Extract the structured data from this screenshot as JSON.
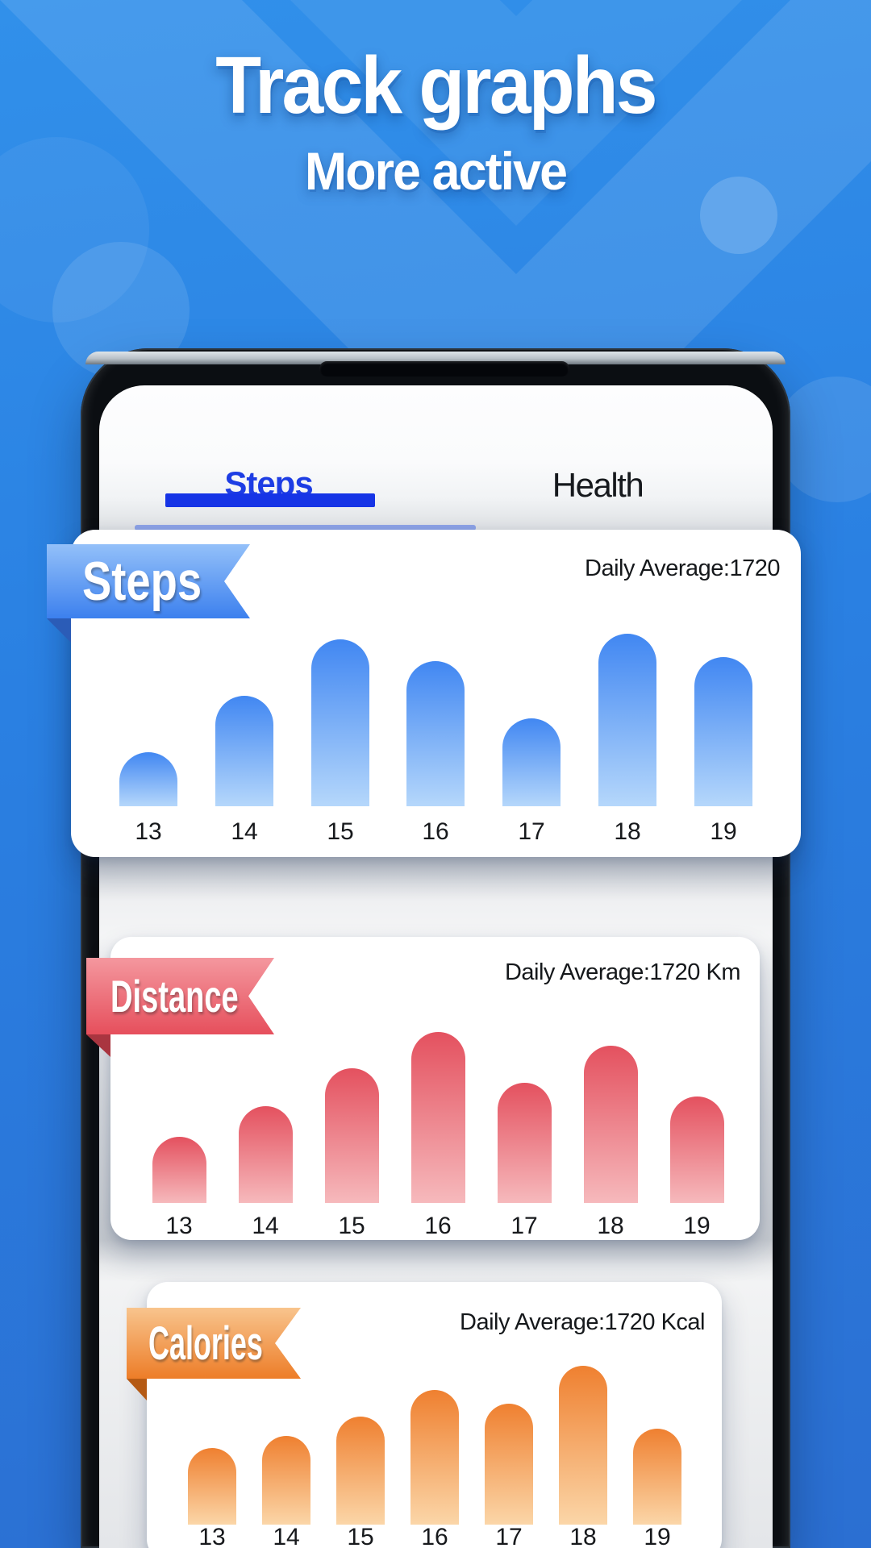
{
  "hero": {
    "title": "Track graphs",
    "subtitle": "More active"
  },
  "phone": {
    "tabs": [
      {
        "label": "Steps",
        "active": true
      },
      {
        "label": "Health",
        "active": false
      }
    ],
    "active_tab_underline_color": "#1634e6"
  },
  "cards": [
    {
      "id": "steps",
      "ribbon_label": "Steps",
      "daily_average": "Daily Average:1720",
      "colors": {
        "ribbon_from": "#93c0f9",
        "ribbon_to": "#3c80ee",
        "fold": "#2b5cb7",
        "bar_from": "#4187f2",
        "bar_to": "#b5d7fb"
      }
    },
    {
      "id": "distance",
      "ribbon_label": "Distance",
      "daily_average": "Daily Average:1720 Km",
      "colors": {
        "ribbon_from": "#f4979e",
        "ribbon_to": "#e64f5c",
        "fold": "#a93540",
        "bar_from": "#e4515f",
        "bar_to": "#f6b9bc"
      }
    },
    {
      "id": "calories",
      "ribbon_label": "Calories",
      "daily_average": "Daily Average:1720 Kcal",
      "colors": {
        "ribbon_from": "#f8c48d",
        "ribbon_to": "#ed7d28",
        "fold": "#b55a14",
        "bar_from": "#ef8030",
        "bar_to": "#fbd6a8"
      }
    }
  ],
  "chart_data": [
    {
      "type": "bar",
      "title": "Steps",
      "annotation": "Daily Average:1720",
      "categories": [
        "13",
        "14",
        "15",
        "16",
        "17",
        "18",
        "19"
      ],
      "values": [
        67,
        137,
        207,
        180,
        109,
        214,
        185
      ],
      "value_scale": "relative bar heights in px (chart shows no numeric y-axis)",
      "xlabel": "",
      "ylabel": "",
      "grid": false,
      "legend": false
    },
    {
      "type": "bar",
      "title": "Distance",
      "annotation": "Daily Average:1720 Km",
      "categories": [
        "13",
        "14",
        "15",
        "16",
        "17",
        "18",
        "19"
      ],
      "values": [
        82,
        120,
        167,
        212,
        149,
        195,
        132
      ],
      "value_scale": "relative bar heights in px (chart shows no numeric y-axis)",
      "xlabel": "",
      "ylabel": "",
      "grid": false,
      "legend": false
    },
    {
      "type": "bar",
      "title": "Calories",
      "annotation": "Daily Average:1720 Kcal",
      "categories": [
        "13",
        "14",
        "15",
        "16",
        "17",
        "18",
        "19"
      ],
      "values": [
        95,
        110,
        134,
        167,
        150,
        197,
        119
      ],
      "value_scale": "relative bar heights in px (chart shows no numeric y-axis)",
      "xlabel": "",
      "ylabel": "",
      "grid": false,
      "legend": false
    }
  ]
}
